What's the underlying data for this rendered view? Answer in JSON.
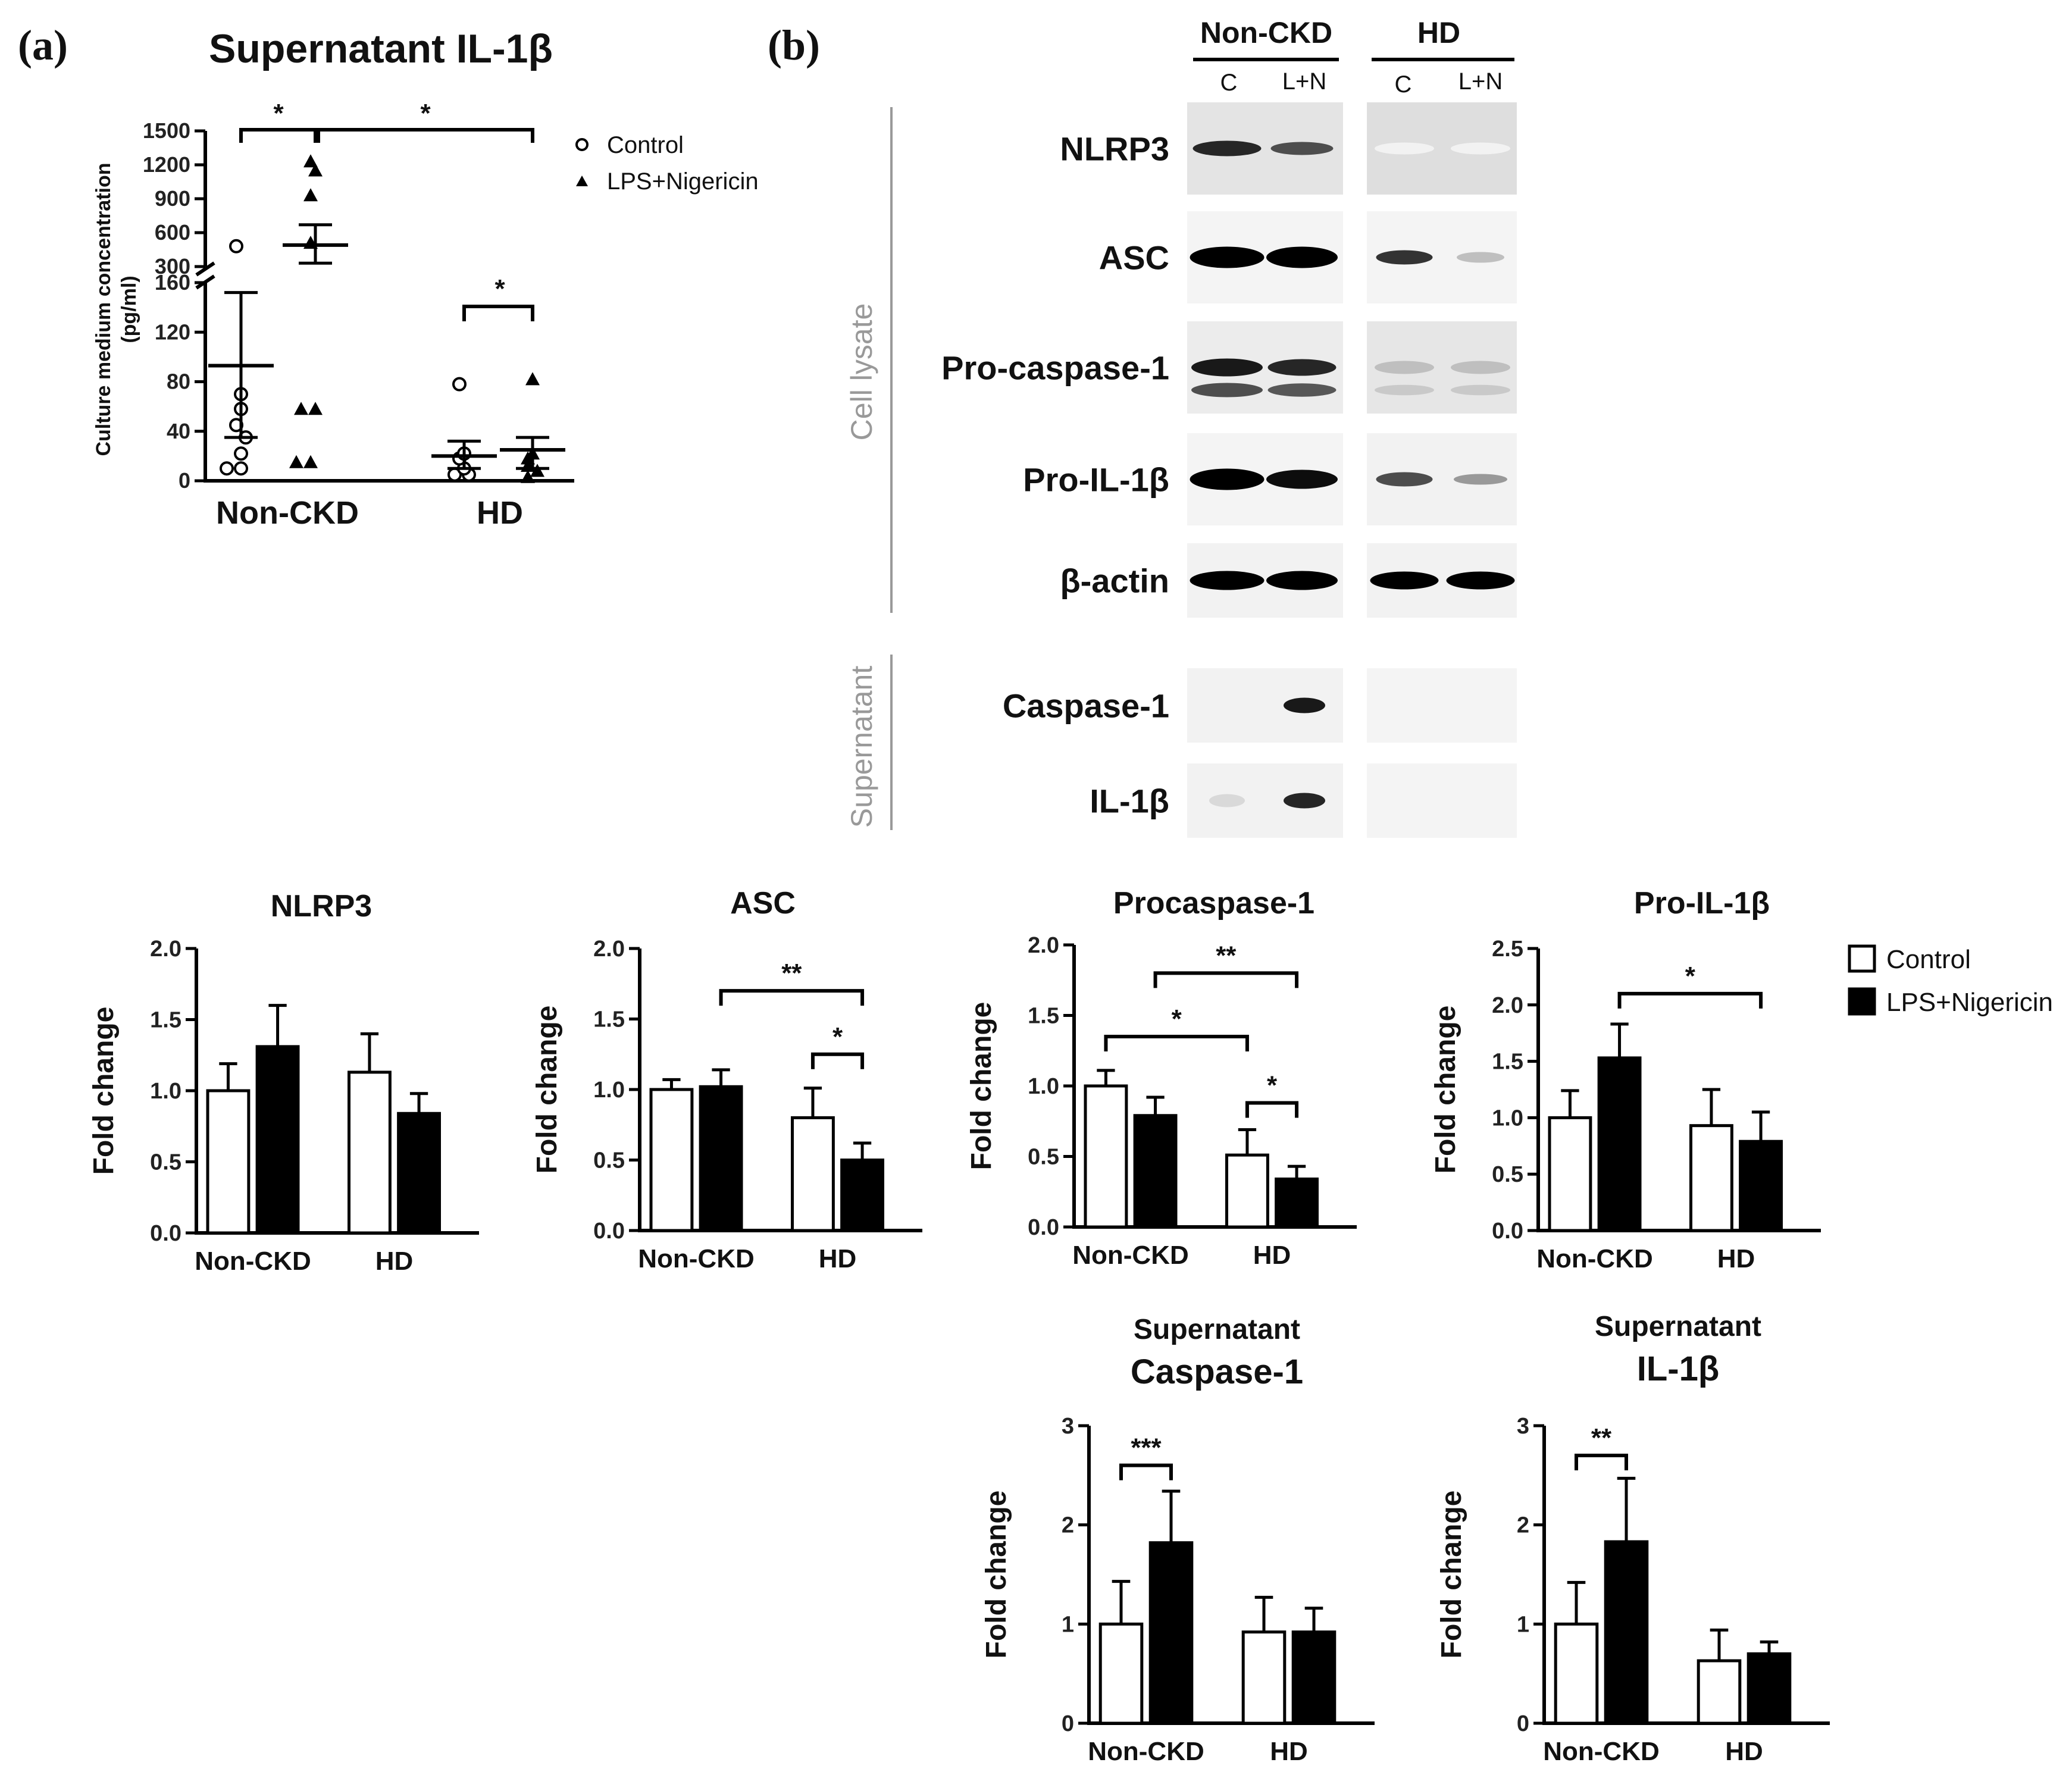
{
  "panel_labels": {
    "a": "(a)",
    "b": "(b)"
  },
  "scatter": {
    "title": "Supernatant IL-1β",
    "ylabel_line1": "Culture medium concentration",
    "ylabel_line2": "(pg/ml)",
    "groups": [
      "Non-CKD",
      "HD"
    ],
    "legend": [
      "Control",
      "LPS+Nigericin"
    ],
    "lower_ticks": [
      "0",
      "40",
      "80",
      "120",
      "160"
    ],
    "upper_ticks": [
      "300",
      "600",
      "900",
      "1200",
      "1500"
    ],
    "sig": [
      "*",
      "*",
      "*"
    ]
  },
  "western": {
    "group_headers": [
      "Non-CKD",
      "HD"
    ],
    "lane_headers": [
      "C",
      "L+N",
      "C",
      "L+N"
    ],
    "section_labels": [
      "Cell lysate",
      "Supernatant"
    ],
    "rows": [
      "NLRP3",
      "ASC",
      "Pro-caspase-1",
      "Pro-IL-1β",
      "β-actin",
      "Caspase-1",
      "IL-1β"
    ]
  },
  "bar_legend": {
    "control": "Control",
    "lps": "LPS+Nigericin"
  },
  "chart_data": [
    {
      "type": "scatter",
      "title": "Supernatant IL-1β",
      "ylabel": "Culture medium concentration (pg/ml)",
      "categories": [
        "Non-CKD",
        "HD"
      ],
      "y_axis_break": {
        "lower": [
          0,
          160
        ],
        "upper": [
          300,
          1500
        ]
      },
      "series": [
        {
          "name": "Control",
          "points": [
            [
              "Non-CKD",
              10
            ],
            [
              "Non-CKD",
              10
            ],
            [
              "Non-CKD",
              22
            ],
            [
              "Non-CKD",
              35
            ],
            [
              "Non-CKD",
              45
            ],
            [
              "Non-CKD",
              58
            ],
            [
              "Non-CKD",
              70
            ],
            [
              "Non-CKD",
              480
            ],
            [
              "HD",
              5
            ],
            [
              "HD",
              5
            ],
            [
              "HD",
              10
            ],
            [
              "HD",
              18
            ],
            [
              "HD",
              22
            ],
            [
              "HD",
              78
            ]
          ],
          "mean": {
            "Non-CKD": 93,
            "HD": 20
          },
          "sem": {
            "Non-CKD": [
              35,
              152
            ],
            "HD": [
              10,
              32
            ]
          }
        },
        {
          "name": "LPS+Nigericin",
          "points": [
            [
              "Non-CKD",
              15
            ],
            [
              "Non-CKD",
              15
            ],
            [
              "Non-CKD",
              58
            ],
            [
              "Non-CKD",
              58
            ],
            [
              "Non-CKD",
              510
            ],
            [
              "Non-CKD",
              930
            ],
            [
              "Non-CKD",
              1150
            ],
            [
              "Non-CKD",
              1230
            ],
            [
              "HD",
              3
            ],
            [
              "HD",
              8
            ],
            [
              "HD",
              12
            ],
            [
              "HD",
              18
            ],
            [
              "HD",
              22
            ],
            [
              "HD",
              82
            ]
          ],
          "mean": {
            "Non-CKD": 490,
            "HD": 25
          },
          "sem": {
            "Non-CKD": [
              330,
              670
            ],
            "HD": [
              10,
              35
            ]
          }
        }
      ],
      "significance": [
        {
          "between": [
            "Non-CKD Control",
            "Non-CKD LPS+Nigericin"
          ],
          "label": "*"
        },
        {
          "between": [
            "Non-CKD LPS+Nigericin",
            "HD LPS+Nigericin"
          ],
          "label": "*"
        },
        {
          "between": [
            "HD Control",
            "HD LPS+Nigericin"
          ],
          "label": "*"
        }
      ]
    },
    {
      "type": "bar",
      "title": "NLRP3",
      "ylabel": "Fold change",
      "categories": [
        "Non-CKD",
        "HD"
      ],
      "ylim": [
        0,
        2.0
      ],
      "yticks": [
        "0.0",
        "0.5",
        "1.0",
        "1.5",
        "2.0"
      ],
      "series": [
        {
          "name": "Control",
          "values": [
            1.0,
            1.13
          ],
          "errors": [
            0.19,
            0.27
          ]
        },
        {
          "name": "LPS+Nigericin",
          "values": [
            1.31,
            0.84
          ],
          "errors": [
            0.29,
            0.14
          ]
        }
      ],
      "significance": []
    },
    {
      "type": "bar",
      "title": "ASC",
      "ylabel": "Fold change",
      "categories": [
        "Non-CKD",
        "HD"
      ],
      "ylim": [
        0,
        2.0
      ],
      "yticks": [
        "0.0",
        "0.5",
        "1.0",
        "1.5",
        "2.0"
      ],
      "series": [
        {
          "name": "Control",
          "values": [
            1.0,
            0.8
          ],
          "errors": [
            0.07,
            0.21
          ]
        },
        {
          "name": "LPS+Nigericin",
          "values": [
            1.02,
            0.5
          ],
          "errors": [
            0.12,
            0.12
          ]
        }
      ],
      "significance": [
        {
          "from": [
            0,
            1
          ],
          "to": [
            1,
            1
          ],
          "y": 1.7,
          "label": "**"
        },
        {
          "from": [
            1,
            0
          ],
          "to": [
            1,
            1
          ],
          "y": 1.25,
          "label": "*"
        }
      ]
    },
    {
      "type": "bar",
      "title": "Procaspase-1",
      "ylabel": "Fold change",
      "categories": [
        "Non-CKD",
        "HD"
      ],
      "ylim": [
        0,
        2.0
      ],
      "yticks": [
        "0.0",
        "0.5",
        "1.0",
        "1.5",
        "2.0"
      ],
      "series": [
        {
          "name": "Control",
          "values": [
            1.0,
            0.51
          ],
          "errors": [
            0.11,
            0.18
          ]
        },
        {
          "name": "LPS+Nigericin",
          "values": [
            0.79,
            0.34
          ],
          "errors": [
            0.13,
            0.09
          ]
        }
      ],
      "significance": [
        {
          "from": [
            0,
            1
          ],
          "to": [
            1,
            1
          ],
          "y": 1.8,
          "label": "**"
        },
        {
          "from": [
            0,
            0
          ],
          "to": [
            1,
            0
          ],
          "y": 1.35,
          "label": "*"
        },
        {
          "from": [
            1,
            0
          ],
          "to": [
            1,
            1
          ],
          "y": 0.88,
          "label": "*"
        }
      ]
    },
    {
      "type": "bar",
      "title": "Pro-IL-1β",
      "ylabel": "Fold change",
      "categories": [
        "Non-CKD",
        "HD"
      ],
      "ylim": [
        0,
        2.5
      ],
      "yticks": [
        "0.0",
        "0.5",
        "1.0",
        "1.5",
        "2.0",
        "2.5"
      ],
      "series": [
        {
          "name": "Control",
          "values": [
            1.0,
            0.93
          ],
          "errors": [
            0.24,
            0.32
          ]
        },
        {
          "name": "LPS+Nigericin",
          "values": [
            1.53,
            0.79
          ],
          "errors": [
            0.3,
            0.26
          ]
        }
      ],
      "significance": [
        {
          "from": [
            0,
            1
          ],
          "to": [
            1,
            1
          ],
          "y": 2.1,
          "label": "*"
        }
      ]
    },
    {
      "type": "bar",
      "title": "Supernatant Caspase-1",
      "ylabel": "Fold change",
      "categories": [
        "Non-CKD",
        "HD"
      ],
      "ylim": [
        0,
        3
      ],
      "yticks": [
        "0",
        "1",
        "2",
        "3"
      ],
      "series": [
        {
          "name": "Control",
          "values": [
            1.0,
            0.92
          ],
          "errors": [
            0.43,
            0.35
          ]
        },
        {
          "name": "LPS+Nigericin",
          "values": [
            1.82,
            0.92
          ],
          "errors": [
            0.52,
            0.24
          ]
        }
      ],
      "significance": [
        {
          "from": [
            0,
            0
          ],
          "to": [
            0,
            1
          ],
          "y": 2.6,
          "label": "***"
        }
      ]
    },
    {
      "type": "bar",
      "title": "Supernatant IL-1β",
      "ylabel": "Fold change",
      "categories": [
        "Non-CKD",
        "HD"
      ],
      "ylim": [
        0,
        3
      ],
      "yticks": [
        "0",
        "1",
        "2",
        "3"
      ],
      "series": [
        {
          "name": "Control",
          "values": [
            1.0,
            0.63
          ],
          "errors": [
            0.42,
            0.31
          ]
        },
        {
          "name": "LPS+Nigericin",
          "values": [
            1.83,
            0.7
          ],
          "errors": [
            0.64,
            0.12
          ]
        }
      ],
      "significance": [
        {
          "from": [
            0,
            0
          ],
          "to": [
            0,
            1
          ],
          "y": 2.7,
          "label": "**"
        }
      ]
    }
  ]
}
